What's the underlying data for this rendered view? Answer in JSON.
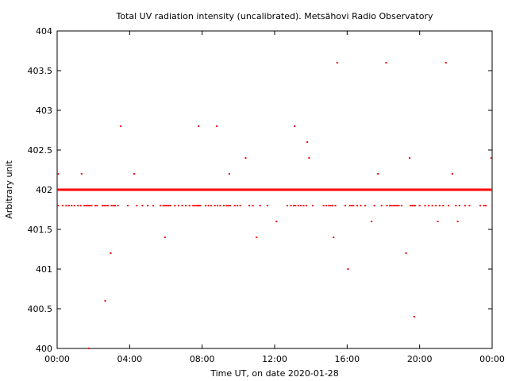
{
  "chart_data": {
    "type": "scatter",
    "title": "Total UV radiation intensity (uncalibrated). Metsähovi Radio Observatory",
    "xlabel": "Time UT, on date 2020-01-28",
    "ylabel": "Arbitrary unit",
    "xlim": [
      0,
      24
    ],
    "ylim": [
      400,
      404
    ],
    "x_ticks": [
      0,
      4,
      8,
      12,
      16,
      20,
      24
    ],
    "x_tick_labels": [
      "00:00",
      "04:00",
      "08:00",
      "12:00",
      "16:00",
      "20:00",
      "00:00"
    ],
    "y_ticks": [
      400,
      400.5,
      401,
      401.5,
      402,
      402.5,
      403,
      403.5,
      404
    ],
    "y_tick_labels": [
      "400",
      "400.5",
      "401",
      "401.5",
      "402",
      "402.5",
      "403",
      "403.5",
      "404"
    ],
    "grid": false,
    "legend": "none",
    "marker_color": "#ff0000",
    "baseline": {
      "y": 402,
      "x_range": [
        0,
        24
      ],
      "description_value": "dense continuous readings at 402"
    },
    "points": [
      [
        0.05,
        402.2
      ],
      [
        1.35,
        402.2
      ],
      [
        1.75,
        400.0
      ],
      [
        2.65,
        400.6
      ],
      [
        2.95,
        401.2
      ],
      [
        3.5,
        402.8
      ],
      [
        4.25,
        402.2
      ],
      [
        5.95,
        401.4
      ],
      [
        7.8,
        402.8
      ],
      [
        8.8,
        402.8
      ],
      [
        9.5,
        402.2
      ],
      [
        10.4,
        402.4
      ],
      [
        11.0,
        401.4
      ],
      [
        12.1,
        401.6
      ],
      [
        13.1,
        402.8
      ],
      [
        13.8,
        402.6
      ],
      [
        13.9,
        402.4
      ],
      [
        15.25,
        401.4
      ],
      [
        15.45,
        403.6
      ],
      [
        16.05,
        401.0
      ],
      [
        17.35,
        401.6
      ],
      [
        17.7,
        402.2
      ],
      [
        18.15,
        403.6
      ],
      [
        19.25,
        401.2
      ],
      [
        19.45,
        402.4
      ],
      [
        19.7,
        400.4
      ],
      [
        21.0,
        401.6
      ],
      [
        21.45,
        403.6
      ],
      [
        21.8,
        402.2
      ],
      [
        22.1,
        401.6
      ],
      [
        23.95,
        402.4
      ]
    ],
    "points_401_8": [
      0.05,
      0.3,
      0.5,
      0.65,
      0.8,
      0.95,
      1.15,
      1.3,
      1.5,
      1.6,
      1.7,
      1.8,
      1.9,
      2.1,
      2.2,
      2.5,
      2.6,
      2.7,
      2.8,
      3.0,
      3.1,
      3.2,
      3.35,
      3.9,
      4.4,
      4.7,
      5.0,
      5.3,
      5.7,
      5.85,
      5.95,
      6.05,
      6.15,
      6.25,
      6.5,
      6.7,
      6.9,
      7.1,
      7.3,
      7.5,
      7.6,
      7.7,
      7.75,
      7.8,
      7.85,
      7.9,
      8.2,
      8.35,
      8.5,
      8.7,
      8.85,
      9.0,
      9.2,
      9.35,
      9.45,
      9.55,
      9.8,
      9.95,
      10.1,
      10.6,
      10.8,
      11.2,
      11.6,
      12.7,
      12.9,
      13.05,
      13.15,
      13.3,
      13.45,
      13.6,
      13.75,
      14.1,
      14.7,
      14.85,
      15.0,
      15.1,
      15.2,
      15.35,
      15.9,
      16.15,
      16.25,
      16.35,
      16.55,
      16.75,
      17.0,
      17.5,
      17.9,
      18.2,
      18.35,
      18.45,
      18.55,
      18.65,
      18.75,
      18.85,
      19.0,
      19.5,
      19.6,
      19.65,
      19.75,
      20.0,
      20.3,
      20.5,
      20.7,
      20.9,
      21.1,
      21.3,
      21.6,
      22.0,
      22.2,
      22.5,
      22.75,
      23.35,
      23.55,
      23.65
    ]
  }
}
